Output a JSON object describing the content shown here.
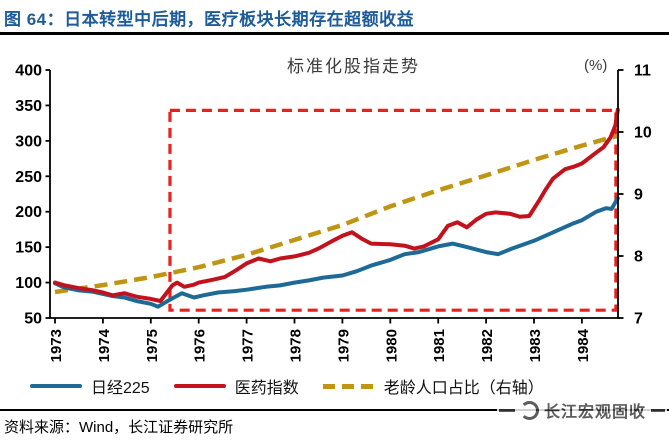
{
  "header": {
    "title": "图 64：日本转型中后期，医疗板块长期存在超额收益",
    "title_color": "#1E5C99"
  },
  "chart_data": {
    "type": "line",
    "title": "标准化股指走势",
    "right_axis_unit": "(%)",
    "x_ticks": [
      1973,
      1974,
      1975,
      1976,
      1977,
      1978,
      1979,
      1980,
      1981,
      1982,
      1983,
      1984
    ],
    "x_range": [
      1973,
      1984.85
    ],
    "left_axis": {
      "ticks": [
        400,
        350,
        300,
        250,
        200,
        150,
        100,
        50
      ],
      "range": [
        50,
        400
      ]
    },
    "right_axis": {
      "ticks": [
        11,
        10,
        9,
        8,
        7
      ],
      "range": [
        7,
        11
      ]
    },
    "grid": false,
    "legend_position": "bottom",
    "series": [
      {
        "id": "nikkei225",
        "name": "日经225",
        "axis": "left",
        "style": "solid",
        "color": "#1D6A96",
        "points": [
          [
            1973.0,
            99
          ],
          [
            1973.2,
            93
          ],
          [
            1973.5,
            89
          ],
          [
            1973.8,
            87
          ],
          [
            1974.0,
            84
          ],
          [
            1974.2,
            81
          ],
          [
            1974.45,
            79
          ],
          [
            1974.7,
            74
          ],
          [
            1975.0,
            70
          ],
          [
            1975.15,
            66
          ],
          [
            1975.4,
            76
          ],
          [
            1975.65,
            85
          ],
          [
            1975.9,
            79
          ],
          [
            1976.1,
            82
          ],
          [
            1976.4,
            86
          ],
          [
            1976.75,
            88
          ],
          [
            1977.0,
            90
          ],
          [
            1977.4,
            94
          ],
          [
            1977.7,
            96
          ],
          [
            1978.0,
            100
          ],
          [
            1978.3,
            103
          ],
          [
            1978.6,
            107
          ],
          [
            1979.0,
            110
          ],
          [
            1979.3,
            116
          ],
          [
            1979.6,
            124
          ],
          [
            1980.0,
            132
          ],
          [
            1980.3,
            140
          ],
          [
            1980.6,
            143
          ],
          [
            1981.0,
            151
          ],
          [
            1981.3,
            155
          ],
          [
            1981.6,
            150
          ],
          [
            1982.0,
            143
          ],
          [
            1982.25,
            140
          ],
          [
            1982.5,
            147
          ],
          [
            1983.0,
            159
          ],
          [
            1983.4,
            171
          ],
          [
            1983.8,
            183
          ],
          [
            1984.0,
            188
          ],
          [
            1984.3,
            200
          ],
          [
            1984.5,
            205
          ],
          [
            1984.62,
            204
          ],
          [
            1984.75,
            219
          ]
        ]
      },
      {
        "id": "pharma-index",
        "name": "医药指数",
        "axis": "left",
        "style": "solid",
        "color": "#C2121C",
        "points": [
          [
            1973.0,
            100
          ],
          [
            1973.2,
            96
          ],
          [
            1973.5,
            92
          ],
          [
            1973.8,
            89
          ],
          [
            1974.0,
            86
          ],
          [
            1974.2,
            82
          ],
          [
            1974.45,
            85
          ],
          [
            1974.7,
            80
          ],
          [
            1975.0,
            77
          ],
          [
            1975.2,
            74
          ],
          [
            1975.45,
            96
          ],
          [
            1975.55,
            100
          ],
          [
            1975.7,
            94
          ],
          [
            1975.9,
            97
          ],
          [
            1976.0,
            100
          ],
          [
            1976.3,
            104
          ],
          [
            1976.55,
            108
          ],
          [
            1976.75,
            116
          ],
          [
            1977.0,
            127
          ],
          [
            1977.25,
            134
          ],
          [
            1977.5,
            130
          ],
          [
            1977.7,
            134
          ],
          [
            1978.0,
            137
          ],
          [
            1978.3,
            142
          ],
          [
            1978.5,
            148
          ],
          [
            1978.8,
            159
          ],
          [
            1979.0,
            166
          ],
          [
            1979.2,
            171
          ],
          [
            1979.4,
            162
          ],
          [
            1979.6,
            155
          ],
          [
            1980.0,
            154
          ],
          [
            1980.3,
            152
          ],
          [
            1980.5,
            148
          ],
          [
            1980.7,
            151
          ],
          [
            1981.0,
            161
          ],
          [
            1981.2,
            180
          ],
          [
            1981.4,
            185
          ],
          [
            1981.6,
            178
          ],
          [
            1981.8,
            189
          ],
          [
            1982.0,
            197
          ],
          [
            1982.2,
            199
          ],
          [
            1982.5,
            197
          ],
          [
            1982.7,
            193
          ],
          [
            1982.9,
            194
          ],
          [
            1983.1,
            215
          ],
          [
            1983.25,
            232
          ],
          [
            1983.4,
            247
          ],
          [
            1983.65,
            260
          ],
          [
            1983.85,
            264
          ],
          [
            1984.0,
            268
          ],
          [
            1984.25,
            281
          ],
          [
            1984.45,
            291
          ],
          [
            1984.6,
            305
          ],
          [
            1984.7,
            322
          ],
          [
            1984.75,
            344
          ]
        ]
      },
      {
        "id": "aging-population-ratio",
        "name": "老龄人口占比（右轴）",
        "axis": "right",
        "style": "dashed",
        "color": "#BF9614",
        "points": [
          [
            1973.0,
            7.42
          ],
          [
            1974,
            7.53
          ],
          [
            1975,
            7.66
          ],
          [
            1976,
            7.82
          ],
          [
            1977,
            8.02
          ],
          [
            1978,
            8.26
          ],
          [
            1979,
            8.5
          ],
          [
            1980,
            8.8
          ],
          [
            1981,
            9.06
          ],
          [
            1982,
            9.3
          ],
          [
            1983,
            9.55
          ],
          [
            1984,
            9.78
          ],
          [
            1984.75,
            9.94
          ]
        ]
      }
    ],
    "annotation_box": {
      "axis": "left",
      "color": "#E8201E",
      "x0": 1975.4,
      "x1": 1984.71,
      "y0": 61,
      "y1": 343
    }
  },
  "footer": {
    "source": "资料来源：Wind，长江证券研究所"
  },
  "watermark": {
    "text": "长江宏观固收"
  }
}
